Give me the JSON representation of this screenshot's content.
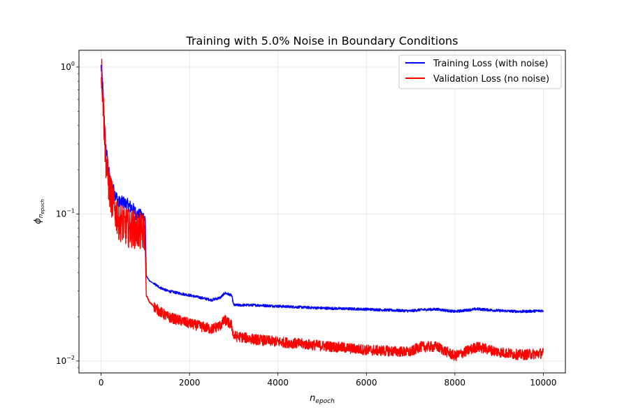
{
  "chart_data": {
    "type": "line",
    "title": "Training with 5.0% Noise in Boundary Conditions",
    "xlabel": "n_epoch",
    "ylabel": "phi_n_epoch",
    "xlim": [
      -500,
      10500
    ],
    "ylim": [
      0.0083,
      1.3
    ],
    "yscale": "log",
    "grid": true,
    "legend_position": "top-right",
    "x_ticks": [
      0,
      2000,
      4000,
      6000,
      8000,
      10000
    ],
    "x_tick_labels": [
      "0",
      "2000",
      "4000",
      "6000",
      "8000",
      "10000"
    ],
    "y_ticks": [
      0.01,
      0.1,
      1
    ],
    "y_tick_labels": [
      "10",
      "10",
      "10"
    ],
    "y_tick_exponents": [
      "−2",
      "−1",
      "0"
    ],
    "series": [
      {
        "name": "Training Loss (with noise)",
        "color": "#0000ff",
        "noise": 0.03,
        "points": [
          [
            0,
            1.0
          ],
          [
            20,
            0.9
          ],
          [
            50,
            0.6
          ],
          [
            100,
            0.3
          ],
          [
            150,
            0.22
          ],
          [
            200,
            0.17
          ],
          [
            300,
            0.14
          ],
          [
            400,
            0.12
          ],
          [
            500,
            0.12
          ],
          [
            600,
            0.115
          ],
          [
            700,
            0.11
          ],
          [
            800,
            0.1
          ],
          [
            900,
            0.097
          ],
          [
            980,
            0.095
          ],
          [
            1000,
            0.09
          ],
          [
            1020,
            0.038
          ],
          [
            1100,
            0.035
          ],
          [
            1300,
            0.032
          ],
          [
            1500,
            0.03
          ],
          [
            2000,
            0.028
          ],
          [
            2500,
            0.026
          ],
          [
            2700,
            0.027
          ],
          [
            2800,
            0.029
          ],
          [
            2950,
            0.028
          ],
          [
            3000,
            0.024
          ],
          [
            3500,
            0.024
          ],
          [
            4000,
            0.0236
          ],
          [
            5000,
            0.0229
          ],
          [
            6000,
            0.0225
          ],
          [
            7000,
            0.0219
          ],
          [
            7200,
            0.0223
          ],
          [
            7600,
            0.0225
          ],
          [
            8000,
            0.0217
          ],
          [
            8500,
            0.0226
          ],
          [
            9000,
            0.022
          ],
          [
            9500,
            0.0217
          ],
          [
            10000,
            0.022
          ]
        ]
      },
      {
        "name": "Validation Loss (no noise)",
        "color": "#ff0000",
        "noise": 0.12,
        "points": [
          [
            0,
            1.0
          ],
          [
            20,
            0.85
          ],
          [
            50,
            0.55
          ],
          [
            100,
            0.25
          ],
          [
            150,
            0.18
          ],
          [
            200,
            0.14
          ],
          [
            300,
            0.11
          ],
          [
            400,
            0.09
          ],
          [
            500,
            0.085
          ],
          [
            600,
            0.08
          ],
          [
            700,
            0.08
          ],
          [
            800,
            0.078
          ],
          [
            900,
            0.075
          ],
          [
            980,
            0.075
          ],
          [
            1000,
            0.06
          ],
          [
            1020,
            0.028
          ],
          [
            1100,
            0.025
          ],
          [
            1300,
            0.022
          ],
          [
            1500,
            0.02
          ],
          [
            2000,
            0.018
          ],
          [
            2500,
            0.0165
          ],
          [
            2700,
            0.0175
          ],
          [
            2800,
            0.019
          ],
          [
            2950,
            0.0175
          ],
          [
            3000,
            0.0148
          ],
          [
            3500,
            0.014
          ],
          [
            4000,
            0.0135
          ],
          [
            5000,
            0.0127
          ],
          [
            6000,
            0.0119
          ],
          [
            7000,
            0.0115
          ],
          [
            7200,
            0.0125
          ],
          [
            7600,
            0.0125
          ],
          [
            8000,
            0.0108
          ],
          [
            8500,
            0.0125
          ],
          [
            9000,
            0.0115
          ],
          [
            9500,
            0.011
          ],
          [
            10000,
            0.0113
          ]
        ]
      }
    ]
  }
}
